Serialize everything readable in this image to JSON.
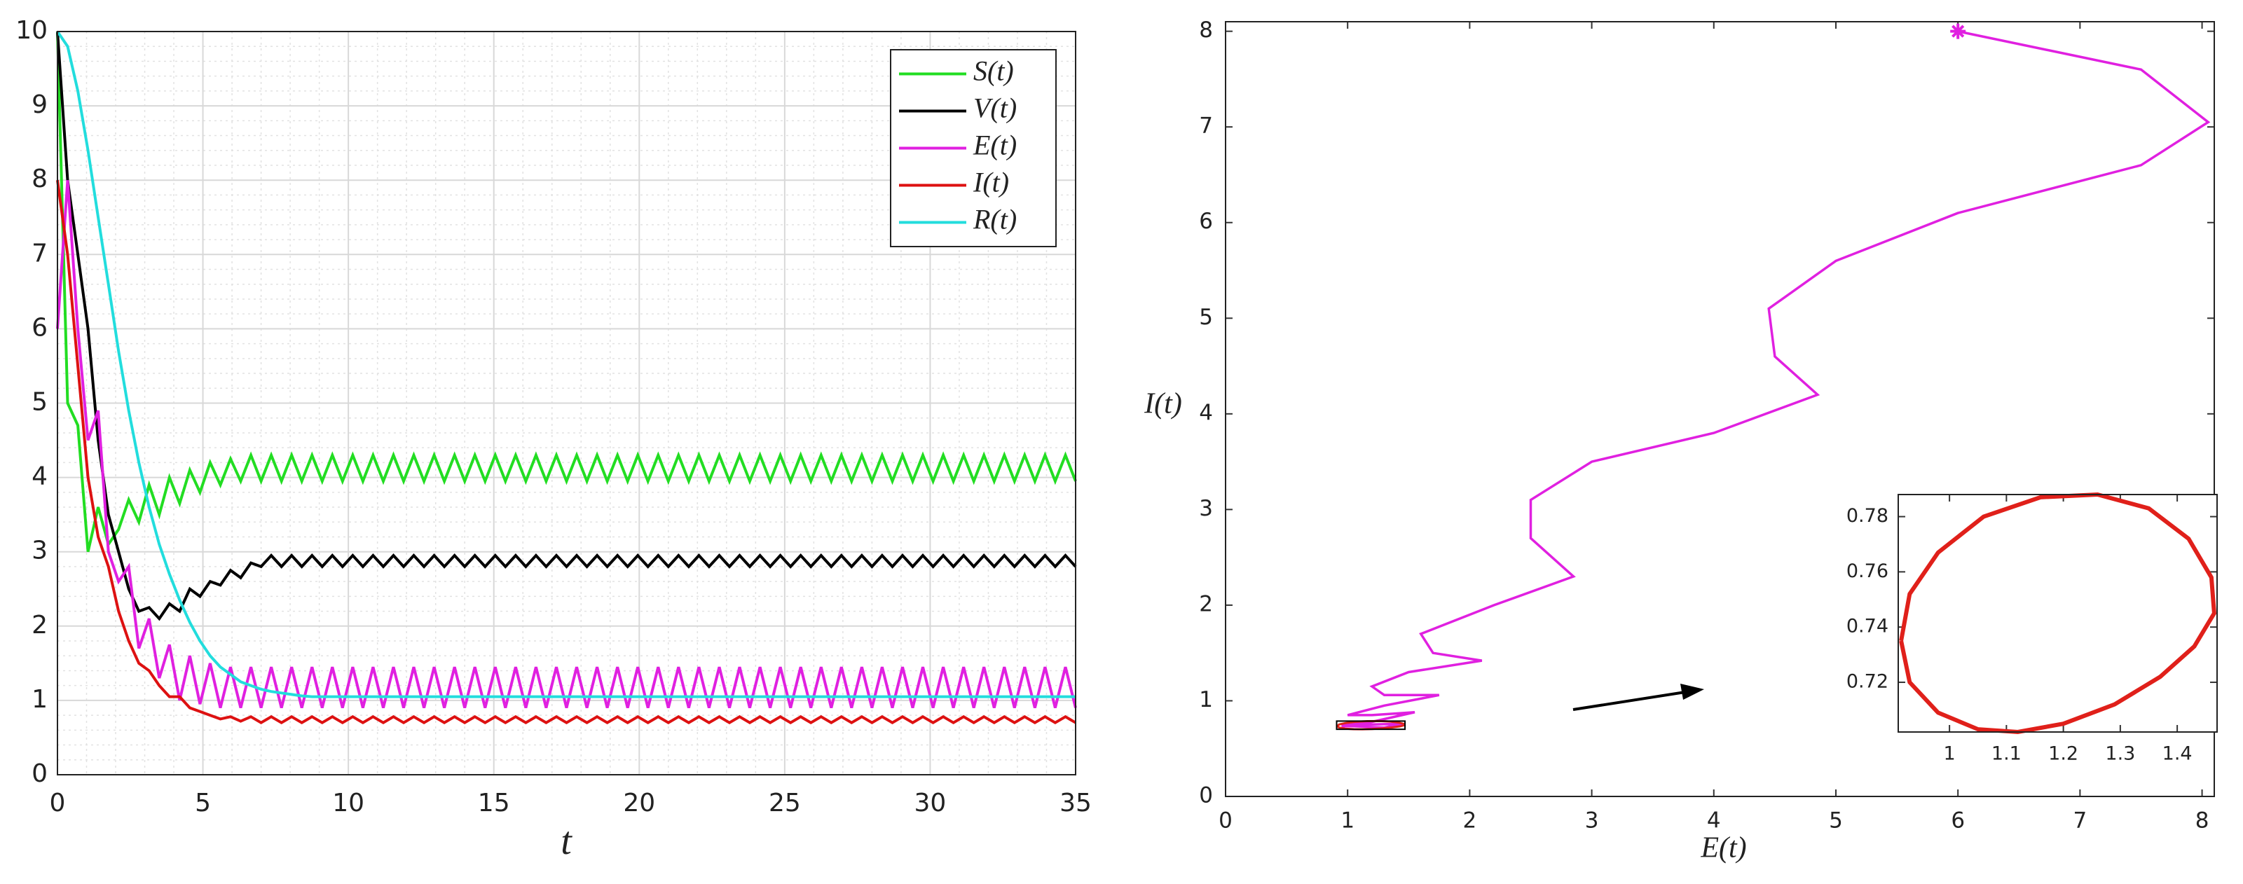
{
  "chart_data": [
    {
      "type": "line",
      "xlabel": "t",
      "x": [
        0,
        0.35,
        0.7,
        1.05,
        1.4,
        1.75,
        2.1,
        2.45,
        2.8,
        3.15,
        3.5,
        3.85,
        4.2,
        4.55,
        4.9,
        5.25,
        5.6,
        5.95,
        6.3,
        6.65,
        7,
        7.35,
        7.7,
        8.05,
        8.4,
        8.75,
        9.1,
        9.45,
        9.8,
        10.15,
        10.5,
        10.85,
        11.2,
        11.55,
        11.9,
        12.25,
        12.6,
        12.95,
        13.3,
        13.65,
        14,
        14.35,
        14.7,
        15.05,
        15.4,
        15.75,
        16.1,
        16.45,
        16.8,
        17.15,
        17.5,
        17.85,
        18.2,
        18.55,
        18.9,
        19.25,
        19.6,
        19.95,
        20.3,
        20.65,
        21,
        21.35,
        21.7,
        22.05,
        22.4,
        22.75,
        23.1,
        23.45,
        23.8,
        24.15,
        24.5,
        24.85,
        25.2,
        25.55,
        25.9,
        26.25,
        26.6,
        26.95,
        27.3,
        27.65,
        28,
        28.35,
        28.7,
        29.05,
        29.4,
        29.75,
        30.1,
        30.45,
        30.8,
        31.15,
        31.5,
        31.85,
        32.2,
        32.55,
        32.9,
        33.25,
        33.6,
        33.95,
        34.3,
        34.65,
        35
      ],
      "series": [
        {
          "name": "S(t)",
          "color": "#22dd22",
          "values": [
            10,
            5.0,
            4.7,
            3.0,
            3.6,
            3.1,
            3.3,
            3.7,
            3.4,
            3.9,
            3.5,
            4.0,
            3.65,
            4.1,
            3.8,
            4.2,
            3.9,
            4.25,
            3.95,
            4.3,
            3.95,
            4.3,
            3.95,
            4.3,
            3.95,
            4.3,
            3.95,
            4.3,
            3.95,
            4.3,
            3.95,
            4.3,
            3.95,
            4.3,
            3.95,
            4.3,
            3.95,
            4.3,
            3.95,
            4.3,
            3.95,
            4.3,
            3.95,
            4.3,
            3.95,
            4.3,
            3.95,
            4.3,
            3.95,
            4.3,
            3.95,
            4.3,
            3.95,
            4.3,
            3.95,
            4.3,
            3.95,
            4.3,
            3.95,
            4.3,
            3.95,
            4.3,
            3.95,
            4.3,
            3.95,
            4.3,
            3.95,
            4.3,
            3.95,
            4.3,
            3.95,
            4.3,
            3.95,
            4.3,
            3.95,
            4.3,
            3.95,
            4.3,
            3.95,
            4.3,
            3.95,
            4.3,
            3.95,
            4.3,
            3.95,
            4.3,
            3.95,
            4.3,
            3.95,
            4.3,
            3.95,
            4.3,
            3.95,
            4.3,
            3.95,
            4.3,
            3.95,
            4.3,
            3.95,
            4.3,
            3.95
          ]
        },
        {
          "name": "V(t)",
          "color": "#000000",
          "values": [
            10,
            8,
            7,
            6,
            4.5,
            3.5,
            3,
            2.5,
            2.2,
            2.25,
            2.1,
            2.3,
            2.2,
            2.5,
            2.4,
            2.6,
            2.55,
            2.75,
            2.65,
            2.85,
            2.8,
            2.95,
            2.8,
            2.95,
            2.8,
            2.95,
            2.8,
            2.95,
            2.8,
            2.95,
            2.8,
            2.95,
            2.8,
            2.95,
            2.8,
            2.95,
            2.8,
            2.95,
            2.8,
            2.95,
            2.8,
            2.95,
            2.8,
            2.95,
            2.8,
            2.95,
            2.8,
            2.95,
            2.8,
            2.95,
            2.8,
            2.95,
            2.8,
            2.95,
            2.8,
            2.95,
            2.8,
            2.95,
            2.8,
            2.95,
            2.8,
            2.95,
            2.8,
            2.95,
            2.8,
            2.95,
            2.8,
            2.95,
            2.8,
            2.95,
            2.8,
            2.95,
            2.8,
            2.95,
            2.8,
            2.95,
            2.8,
            2.95,
            2.8,
            2.95,
            2.8,
            2.95,
            2.8,
            2.95,
            2.8,
            2.95,
            2.8,
            2.95,
            2.8,
            2.95,
            2.8,
            2.95,
            2.8,
            2.95,
            2.8,
            2.95,
            2.8,
            2.95,
            2.8,
            2.95,
            2.8
          ]
        },
        {
          "name": "E(t)",
          "color": "#e020e0",
          "values": [
            6,
            8,
            6,
            4.5,
            4.9,
            3,
            2.6,
            2.8,
            1.7,
            2.1,
            1.3,
            1.75,
            1.0,
            1.6,
            0.95,
            1.5,
            0.9,
            1.45,
            0.9,
            1.45,
            0.9,
            1.45,
            0.9,
            1.45,
            0.9,
            1.45,
            0.9,
            1.45,
            0.9,
            1.45,
            0.9,
            1.45,
            0.9,
            1.45,
            0.9,
            1.45,
            0.9,
            1.45,
            0.9,
            1.45,
            0.9,
            1.45,
            0.9,
            1.45,
            0.9,
            1.45,
            0.9,
            1.45,
            0.9,
            1.45,
            0.9,
            1.45,
            0.9,
            1.45,
            0.9,
            1.45,
            0.9,
            1.45,
            0.9,
            1.45,
            0.9,
            1.45,
            0.9,
            1.45,
            0.9,
            1.45,
            0.9,
            1.45,
            0.9,
            1.45,
            0.9,
            1.45,
            0.9,
            1.45,
            0.9,
            1.45,
            0.9,
            1.45,
            0.9,
            1.45,
            0.9,
            1.45,
            0.9,
            1.45,
            0.9,
            1.45,
            0.9,
            1.45,
            0.9,
            1.45,
            0.9,
            1.45,
            0.9,
            1.45,
            0.9,
            1.45,
            0.9,
            1.45,
            0.9,
            1.45,
            0.9
          ]
        },
        {
          "name": "I(t)",
          "color": "#dd1111",
          "values": [
            8,
            7,
            5.5,
            4,
            3.2,
            2.8,
            2.2,
            1.8,
            1.5,
            1.4,
            1.2,
            1.05,
            1.05,
            0.9,
            0.85,
            0.8,
            0.75,
            0.78,
            0.72,
            0.78,
            0.7,
            0.78,
            0.7,
            0.78,
            0.7,
            0.78,
            0.7,
            0.78,
            0.7,
            0.78,
            0.7,
            0.78,
            0.7,
            0.78,
            0.7,
            0.78,
            0.7,
            0.78,
            0.7,
            0.78,
            0.7,
            0.78,
            0.7,
            0.78,
            0.7,
            0.78,
            0.7,
            0.78,
            0.7,
            0.78,
            0.7,
            0.78,
            0.7,
            0.78,
            0.7,
            0.78,
            0.7,
            0.78,
            0.7,
            0.78,
            0.7,
            0.78,
            0.7,
            0.78,
            0.7,
            0.78,
            0.7,
            0.78,
            0.7,
            0.78,
            0.7,
            0.78,
            0.7,
            0.78,
            0.7,
            0.78,
            0.7,
            0.78,
            0.7,
            0.78,
            0.7,
            0.78,
            0.7,
            0.78,
            0.7,
            0.78,
            0.7,
            0.78,
            0.7,
            0.78,
            0.7,
            0.78,
            0.7,
            0.78,
            0.7,
            0.78,
            0.7,
            0.78,
            0.7,
            0.78,
            0.7
          ]
        },
        {
          "name": "R(t)",
          "color": "#22dddd",
          "values": [
            10,
            9.8,
            9.2,
            8.4,
            7.5,
            6.6,
            5.7,
            4.9,
            4.2,
            3.6,
            3.1,
            2.7,
            2.35,
            2.05,
            1.8,
            1.6,
            1.45,
            1.35,
            1.25,
            1.2,
            1.15,
            1.12,
            1.1,
            1.08,
            1.06,
            1.05,
            1.05,
            1.05,
            1.05,
            1.05,
            1.05,
            1.05,
            1.05,
            1.05,
            1.05,
            1.05,
            1.05,
            1.05,
            1.05,
            1.05,
            1.05,
            1.05,
            1.05,
            1.05,
            1.05,
            1.05,
            1.05,
            1.05,
            1.05,
            1.05,
            1.05,
            1.05,
            1.05,
            1.05,
            1.05,
            1.05,
            1.05,
            1.05,
            1.05,
            1.05,
            1.05,
            1.05,
            1.05,
            1.05,
            1.05,
            1.05,
            1.05,
            1.05,
            1.05,
            1.05,
            1.05,
            1.05,
            1.05,
            1.05,
            1.05,
            1.05,
            1.05,
            1.05,
            1.05,
            1.05,
            1.05,
            1.05,
            1.05,
            1.05,
            1.05,
            1.05,
            1.05,
            1.05,
            1.05,
            1.05,
            1.05,
            1.05,
            1.05,
            1.05,
            1.05,
            1.05,
            1.05,
            1.05,
            1.05,
            1.05,
            1.05
          ]
        }
      ],
      "xlim": [
        0,
        35
      ],
      "ylim": [
        0,
        10
      ],
      "xticks": [
        0,
        5,
        10,
        15,
        20,
        25,
        30,
        35
      ],
      "yticks": [
        0,
        1,
        2,
        3,
        4,
        5,
        6,
        7,
        8,
        9,
        10
      ],
      "grid": true,
      "minor_grid": true,
      "legend": "upper right"
    },
    {
      "type": "line",
      "xlabel": "E(t)",
      "ylabel": "I(t)",
      "color": "#e020e0",
      "start_marker": "*",
      "x": [
        6,
        7.5,
        8.05,
        7.5,
        6,
        5,
        4.45,
        4.5,
        4.85,
        4,
        3,
        2.5,
        2.5,
        2.85,
        2.2,
        1.6,
        1.7,
        2.1,
        1.5,
        1.2,
        1.3,
        1.75,
        1.3,
        1.0,
        1.2,
        1.55,
        1.2,
        0.95,
        1.3,
        1.45,
        1.1,
        0.95
      ],
      "values": [
        8,
        7.6,
        7.05,
        6.6,
        6.1,
        5.6,
        5.1,
        4.6,
        4.2,
        3.8,
        3.5,
        3.1,
        2.7,
        2.3,
        2.0,
        1.7,
        1.5,
        1.42,
        1.3,
        1.15,
        1.06,
        1.06,
        0.95,
        0.85,
        0.85,
        0.88,
        0.78,
        0.74,
        0.72,
        0.76,
        0.75,
        0.73
      ],
      "xlim": [
        0,
        8.1
      ],
      "ylim": [
        0,
        8.1
      ],
      "xticks": [
        0,
        1,
        2,
        3,
        4,
        5,
        6,
        7,
        8
      ],
      "yticks": [
        0,
        1,
        2,
        3,
        4,
        5,
        6,
        7,
        8
      ]
    },
    {
      "type": "line",
      "color": "#e0201a",
      "x": [
        0.915,
        0.93,
        0.98,
        1.05,
        1.12,
        1.2,
        1.29,
        1.37,
        1.43,
        1.465,
        1.46,
        1.42,
        1.35,
        1.26,
        1.16,
        1.06,
        0.98,
        0.93,
        0.915
      ],
      "values": [
        0.735,
        0.72,
        0.709,
        0.703,
        0.702,
        0.705,
        0.712,
        0.722,
        0.733,
        0.745,
        0.758,
        0.772,
        0.783,
        0.788,
        0.787,
        0.78,
        0.767,
        0.752,
        0.735
      ],
      "xlim": [
        0.91,
        1.47
      ],
      "ylim": [
        0.702,
        0.788
      ],
      "xticks": [
        1,
        1.1,
        1.2,
        1.3,
        1.4
      ],
      "yticks": [
        0.72,
        0.74,
        0.76,
        0.78
      ]
    }
  ]
}
